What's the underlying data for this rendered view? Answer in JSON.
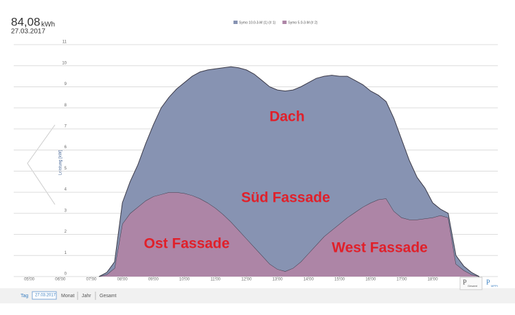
{
  "header": {
    "energy": "84,08",
    "unit": "kWh",
    "date": "27.03.2017"
  },
  "nav": {
    "items": [
      "Tag",
      "27.03.2017",
      "Monat",
      "Jahr",
      "Gesamt"
    ]
  },
  "buttons": {
    "total": {
      "symbol": "P",
      "sub": "Gesamt"
    },
    "mppt": {
      "symbol": "P",
      "sub": "MPPt"
    }
  },
  "chart_data": {
    "type": "stacked-area",
    "ylabel": "Leistung [kW]",
    "annotations": [
      "Dach",
      "Süd Fassade",
      "Ost Fassade",
      "West Fassade"
    ],
    "xlim": [
      4.5,
      20.1
    ],
    "xticks": [
      {
        "value": 5,
        "label": "05:00"
      },
      {
        "value": 6,
        "label": "06:00"
      },
      {
        "value": 7,
        "label": "07:00"
      },
      {
        "value": 8,
        "label": "08:00"
      },
      {
        "value": 9,
        "label": "09:00"
      },
      {
        "value": 10,
        "label": "10:00"
      },
      {
        "value": 11,
        "label": "11:00"
      },
      {
        "value": 12,
        "label": "12:00"
      },
      {
        "value": 13,
        "label": "13:00"
      },
      {
        "value": 14,
        "label": "14:00"
      },
      {
        "value": 15,
        "label": "15:00"
      },
      {
        "value": 16,
        "label": "16:00"
      },
      {
        "value": 17,
        "label": "17:00"
      },
      {
        "value": 18,
        "label": "18:00"
      }
    ],
    "ylim": [
      0,
      11
    ],
    "yticks": [
      0,
      1,
      2,
      3,
      4,
      5,
      6,
      7,
      8,
      9,
      10,
      11
    ],
    "grid": true,
    "x": [
      7.25,
      7.5,
      7.75,
      8,
      8.25,
      8.5,
      8.75,
      9,
      9.25,
      9.5,
      9.75,
      10,
      10.25,
      10.5,
      10.75,
      11,
      11.25,
      11.5,
      11.75,
      12,
      12.25,
      12.5,
      12.75,
      13,
      13.25,
      13.5,
      13.75,
      14,
      14.25,
      14.5,
      14.75,
      15,
      15.25,
      15.5,
      15.75,
      16,
      16.25,
      16.5,
      16.75,
      17,
      17.25,
      17.5,
      17.75,
      18,
      18.25,
      18.5,
      18.75,
      19,
      19.25,
      19.5
    ],
    "series": [
      {
        "name": "Symo 10.0-3-M (1) (# 1)",
        "color": "#8793b2",
        "values": [
          0,
          0.1,
          0.3,
          1.0,
          1.5,
          2.0,
          2.7,
          3.4,
          4.1,
          4.5,
          4.9,
          5.25,
          5.65,
          6.0,
          6.3,
          6.6,
          6.95,
          7.35,
          7.7,
          8.0,
          8.2,
          8.3,
          8.4,
          8.5,
          8.55,
          8.45,
          8.3,
          8.1,
          7.9,
          7.6,
          7.35,
          7.0,
          6.7,
          6.25,
          5.8,
          5.3,
          4.95,
          4.6,
          4.4,
          3.7,
          2.8,
          2.0,
          1.45,
          0.7,
          0.3,
          0.2,
          0.4,
          0.2,
          0.1,
          0
        ]
      },
      {
        "name": "Symo 5.0-3-M (# 2)",
        "color": "#ad85a6",
        "values": [
          0,
          0.1,
          0.4,
          2.5,
          3.0,
          3.3,
          3.6,
          3.8,
          3.9,
          4.0,
          4.0,
          3.95,
          3.85,
          3.7,
          3.5,
          3.25,
          2.95,
          2.6,
          2.2,
          1.8,
          1.4,
          1.0,
          0.6,
          0.35,
          0.25,
          0.4,
          0.7,
          1.1,
          1.5,
          1.9,
          2.2,
          2.5,
          2.8,
          3.05,
          3.3,
          3.5,
          3.65,
          3.7,
          3.1,
          2.8,
          2.7,
          2.7,
          2.75,
          2.8,
          2.9,
          2.8,
          0.6,
          0.3,
          0.1,
          0
        ]
      }
    ]
  }
}
